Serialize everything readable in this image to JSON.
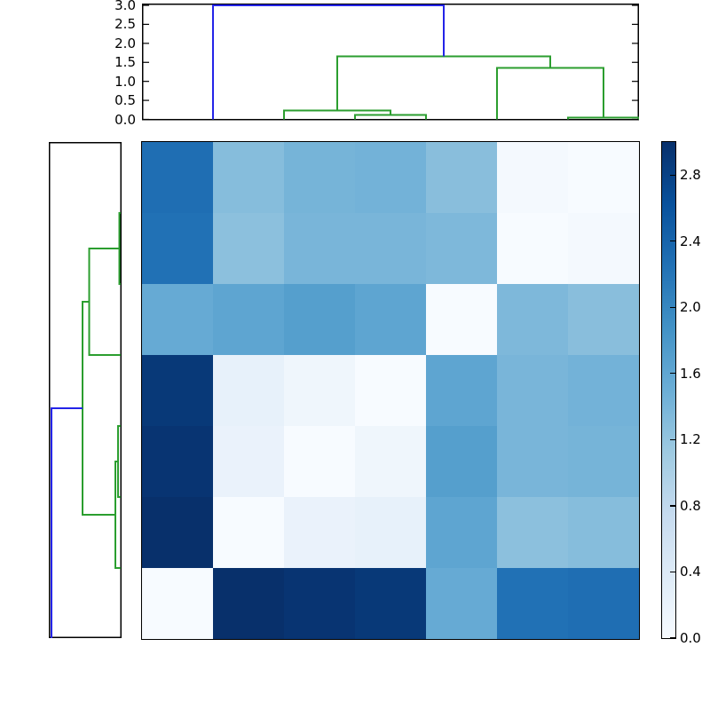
{
  "figure": {
    "background": "#ffffff",
    "description": "Hierarchically clustered distance-matrix heatmap with top and left dendrograms and a vertical colorbar"
  },
  "chart_data": {
    "type": "heatmap",
    "variant": "clustergram",
    "grid": false,
    "colormap": {
      "name": "Blues",
      "vmin": 0.0,
      "vmax": 3.0,
      "stops": [
        "#f7fbff",
        "#deebf7",
        "#c6dbef",
        "#9ecae1",
        "#6baed6",
        "#4292c6",
        "#2171b5",
        "#08519c",
        "#08306b"
      ]
    },
    "link_colors": {
      "below_threshold": "#2b9e2f",
      "above_threshold": "#2424e8"
    },
    "heatmap": {
      "n_rows": 7,
      "n_cols": 7,
      "values": [
        [
          2.28,
          1.3,
          1.42,
          1.44,
          1.28,
          0.05,
          0.0
        ],
        [
          2.25,
          1.26,
          1.4,
          1.4,
          1.36,
          0.0,
          0.05
        ],
        [
          1.55,
          1.62,
          1.7,
          1.62,
          0.0,
          1.36,
          1.28
        ],
        [
          2.9,
          0.24,
          0.12,
          0.0,
          1.62,
          1.4,
          1.44
        ],
        [
          2.95,
          0.2,
          0.0,
          0.12,
          1.7,
          1.4,
          1.42
        ],
        [
          3.0,
          0.0,
          0.2,
          0.24,
          1.62,
          1.26,
          1.3
        ],
        [
          0.0,
          3.0,
          2.95,
          2.9,
          1.55,
          2.25,
          2.28
        ]
      ]
    },
    "top_dendrogram": {
      "orientation": "top",
      "n_leaves": 7,
      "ylim": [
        0,
        3.07
      ],
      "axis_ticks": {
        "values": [
          0,
          0.5,
          1.0,
          1.5,
          2.0,
          2.5,
          3.0
        ],
        "labels": [
          "0.0",
          "0.5",
          "1.0",
          "1.5",
          "2.0",
          "2.5",
          "3.0"
        ]
      },
      "links": [
        {
          "a": 6,
          "da": 0,
          "b": 7,
          "db": 0,
          "h": 0.05,
          "c": "g"
        },
        {
          "a": 3,
          "da": 0,
          "b": 4,
          "db": 0,
          "h": 0.12,
          "c": "g"
        },
        {
          "a": 2,
          "da": 0,
          "b": 3.5,
          "db": 0.12,
          "h": 0.23,
          "c": "g"
        },
        {
          "a": 5,
          "da": 0,
          "b": 6.5,
          "db": 0.05,
          "h": 1.36,
          "c": "g"
        },
        {
          "a": 2.75,
          "da": 0.23,
          "b": 5.75,
          "db": 1.36,
          "h": 1.66,
          "c": "g"
        },
        {
          "a": 1,
          "da": 0,
          "b": 4.25,
          "db": 1.66,
          "h": 3.0,
          "c": "b"
        }
      ]
    },
    "left_dendrogram": {
      "orientation": "left",
      "n_leaves": 7,
      "xlim": [
        0,
        3.15
      ],
      "axis_ticks": {
        "values": [],
        "labels": []
      },
      "links": [
        {
          "a": 1,
          "da": 0,
          "b": 2,
          "db": 0,
          "h": 0.05,
          "c": "g"
        },
        {
          "a": 4,
          "da": 0,
          "b": 5,
          "db": 0,
          "h": 0.12,
          "c": "g"
        },
        {
          "a": 4.5,
          "da": 0.12,
          "b": 6,
          "db": 0,
          "h": 0.23,
          "c": "g"
        },
        {
          "a": 1.5,
          "da": 0.05,
          "b": 3,
          "db": 0,
          "h": 1.36,
          "c": "g"
        },
        {
          "a": 2.25,
          "da": 1.36,
          "b": 5.25,
          "db": 0.23,
          "h": 1.66,
          "c": "g"
        },
        {
          "a": 3.75,
          "da": 1.66,
          "b": 7,
          "db": 0,
          "h": 3.0,
          "c": "b"
        }
      ]
    },
    "colorbar": {
      "range": [
        0.0,
        3.0
      ],
      "ticks": {
        "values": [
          0.0,
          0.4,
          0.8,
          1.2,
          1.6,
          2.0,
          2.4,
          2.8
        ],
        "labels": [
          "0.0",
          "0.4",
          "0.8",
          "1.2",
          "1.6",
          "2.0",
          "2.4",
          "2.8"
        ]
      }
    }
  }
}
